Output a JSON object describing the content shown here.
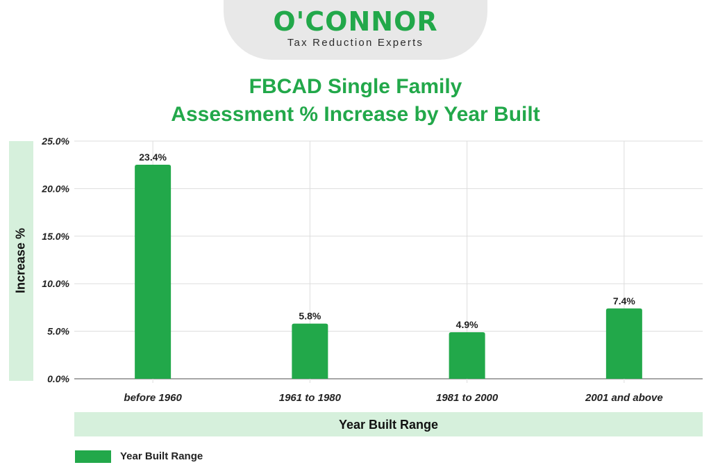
{
  "logo": {
    "name": "O'CONNOR",
    "tagline": "Tax Reduction Experts"
  },
  "colors": {
    "brand_green": "#22a84a",
    "band_green": "#d6f0dc",
    "grid": "#dddddd"
  },
  "chart_data": {
    "type": "bar",
    "title_line1": "FBCAD Single Family",
    "title_line2": "Assessment % Increase by Year Built",
    "categories": [
      "before 1960",
      "1961 to 1980",
      "1981 to 2000",
      "2001 and above"
    ],
    "values": [
      23.4,
      5.8,
      4.9,
      7.4
    ],
    "data_labels": [
      "23.4%",
      "5.8%",
      "4.9%",
      "7.4%"
    ],
    "series": [
      {
        "name": "Year Built Range",
        "values": [
          23.4,
          5.8,
          4.9,
          7.4
        ]
      }
    ],
    "xlabel": "Year Built Range",
    "ylabel": "Increase %",
    "ylim": [
      0,
      25
    ],
    "yticks": [
      0,
      5,
      10,
      15,
      20,
      25
    ],
    "ytick_labels": [
      "0.0%",
      "5.0%",
      "10.0%",
      "15.0%",
      "20.0%",
      "25.0%"
    ],
    "grid": true,
    "legend": {
      "position": "bottom-left",
      "label": "Year Built Range"
    }
  }
}
